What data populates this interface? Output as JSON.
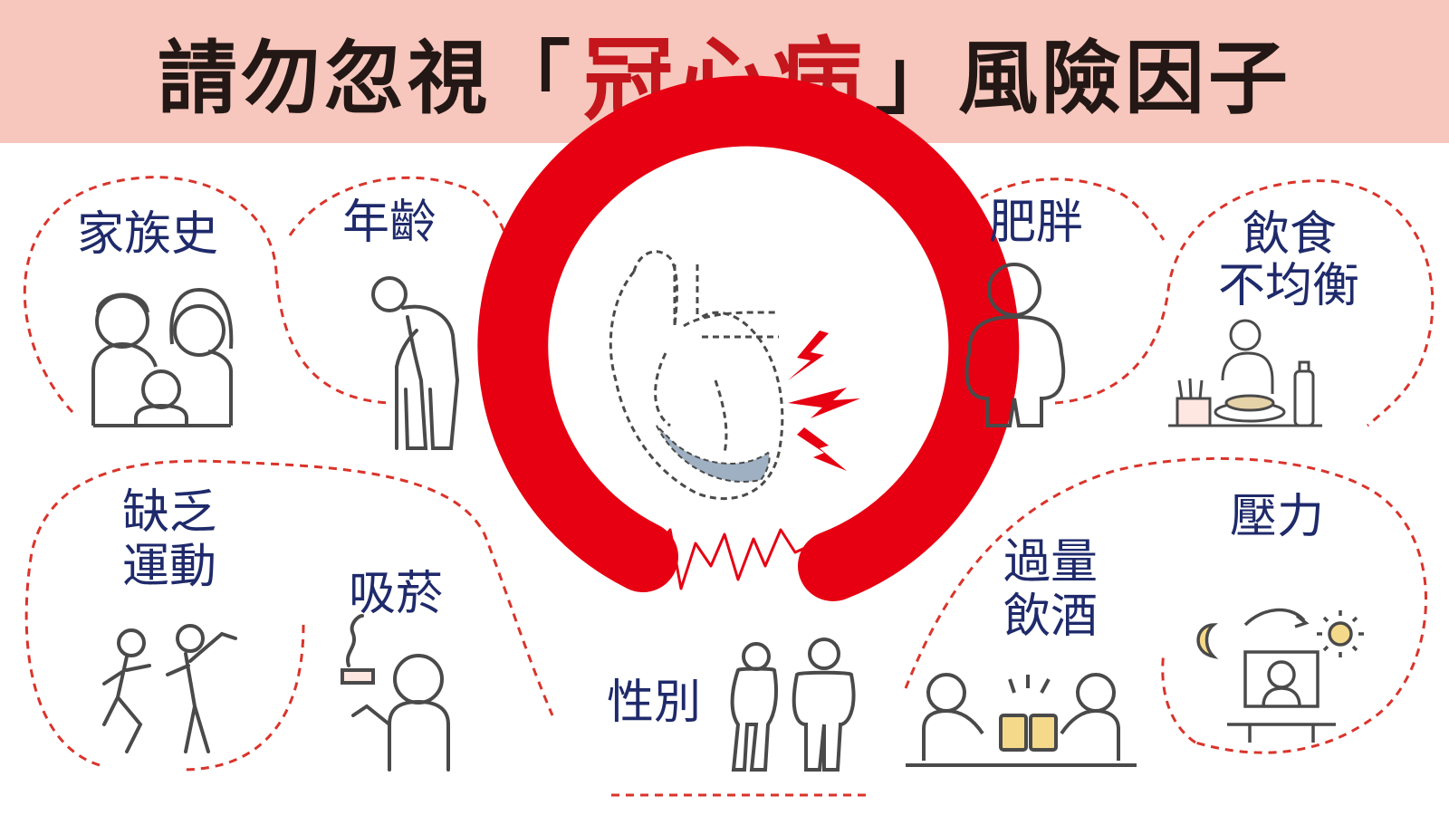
{
  "title": {
    "prefix": "請勿忽視",
    "open_bracket": "「",
    "highlight": "冠心病",
    "close_bracket": "」",
    "suffix": "風險因子"
  },
  "factors": {
    "family_history": "家族史",
    "age": "年齡",
    "obesity": "肥胖",
    "diet_line1": "飲食",
    "diet_line2": "不均衡",
    "exercise_line1": "缺乏",
    "exercise_line2": "運動",
    "smoking": "吸菸",
    "gender": "性別",
    "alcohol_line1": "過量",
    "alcohol_line2": "飲酒",
    "stress": "壓力"
  },
  "colors": {
    "header_bg": "#f7c6bc",
    "accent_red": "#e60012",
    "title_red": "#c4161c",
    "label_navy": "#1f2a6b",
    "icon_gray": "#4a4a4a",
    "dashed_red": "#d9342b"
  }
}
